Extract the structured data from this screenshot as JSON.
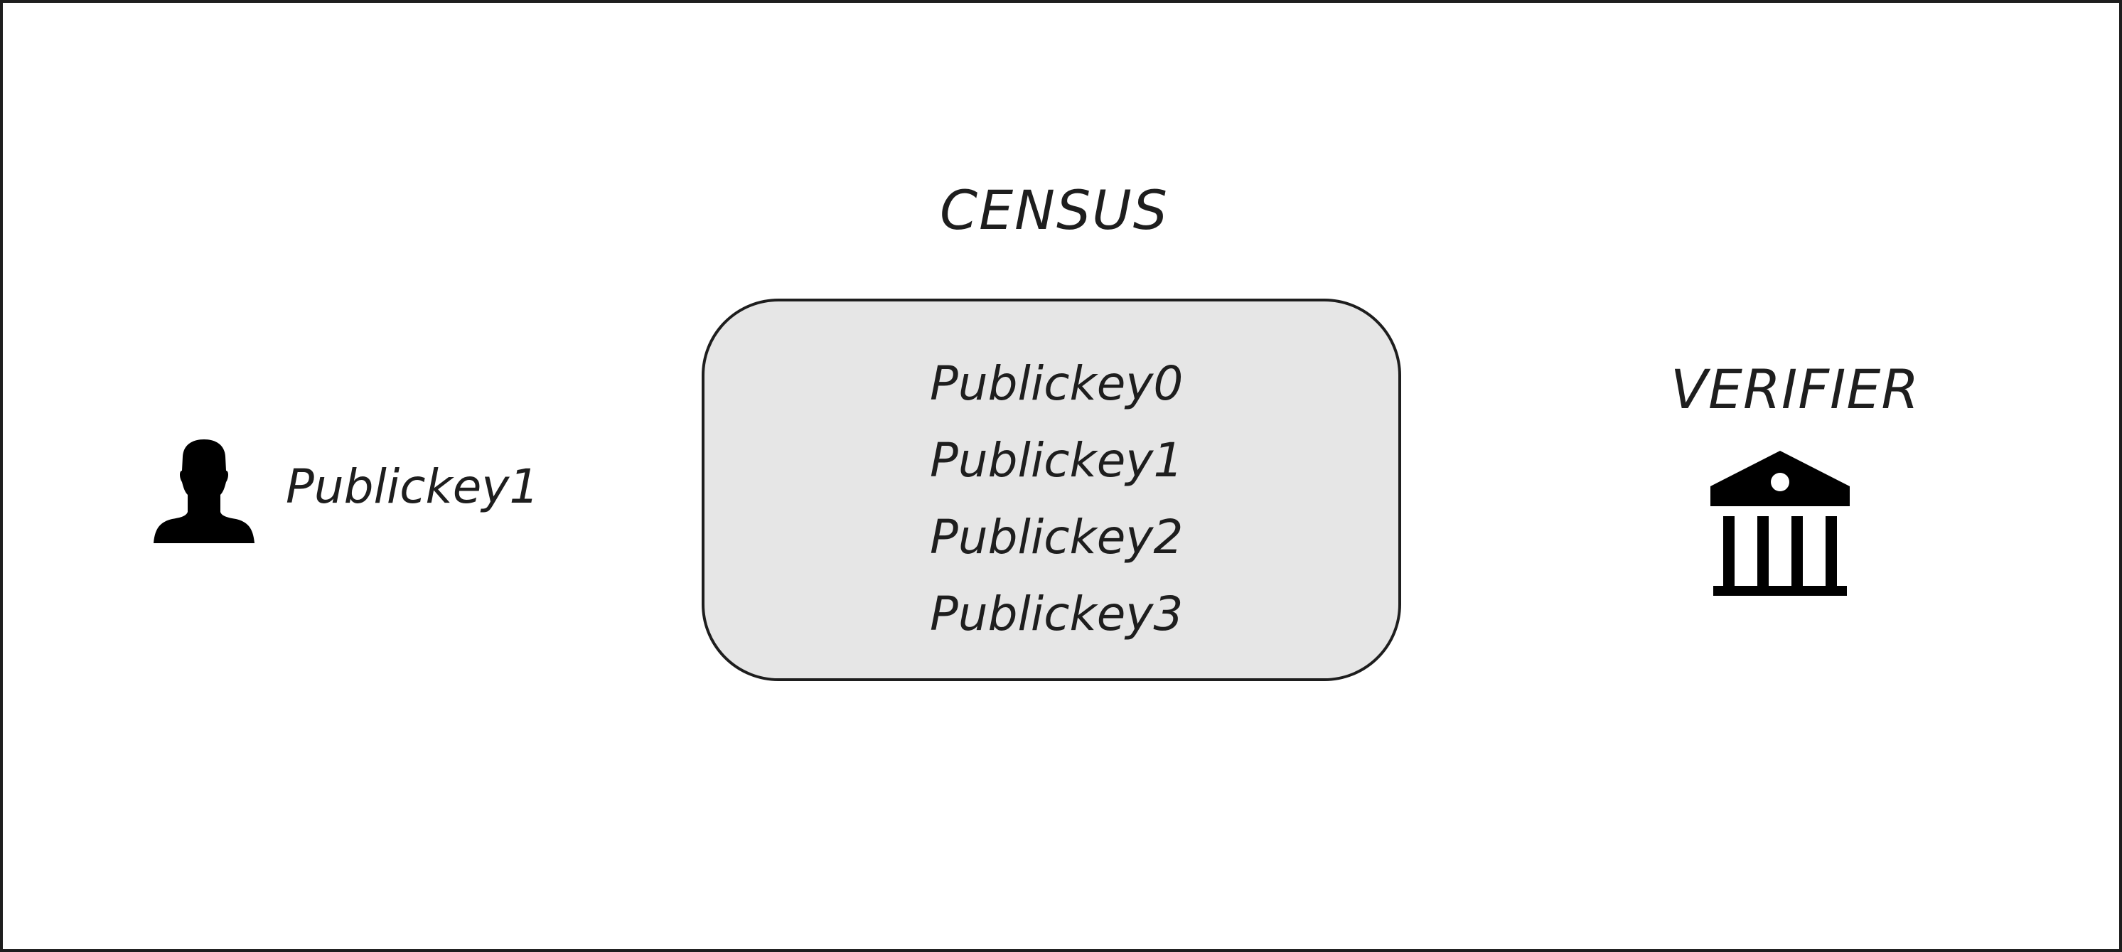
{
  "diagram": {
    "user": {
      "key_label": "Publickey1",
      "icon": "person-silhouette-icon"
    },
    "census": {
      "title": "CENSUS",
      "entries": [
        "Publickey0",
        "Publickey1",
        "Publickey2",
        "Publickey3"
      ],
      "fill_color": "#e6e6e6"
    },
    "verifier": {
      "title": "VERIFIER",
      "icon": "bank-building-icon"
    },
    "colors": {
      "stroke": "#1e1e1e",
      "background": "#ffffff"
    }
  }
}
